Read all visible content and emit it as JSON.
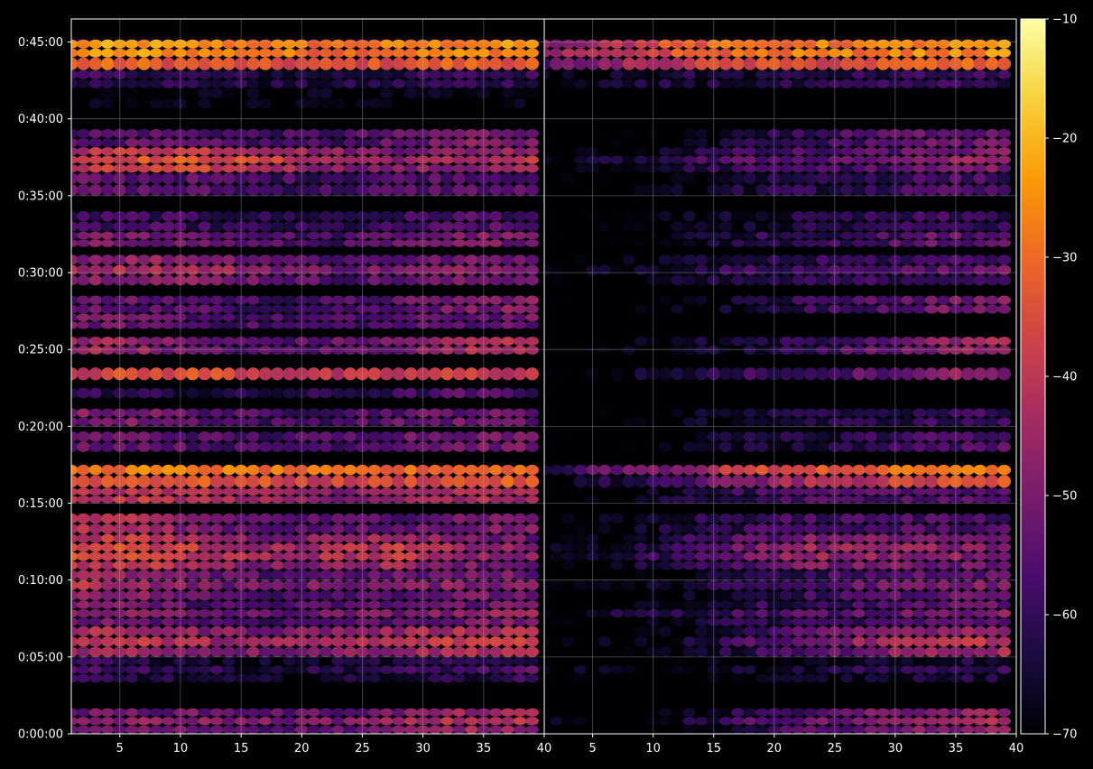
{
  "chart_data": {
    "type": "heatmap",
    "title": "",
    "xlabel": "",
    "ylabel": "",
    "background": "#000000",
    "colormap": "inferno",
    "colormap_stops": [
      "#000004",
      "#1b0c41",
      "#4a0c6b",
      "#781c6d",
      "#a52c60",
      "#cf4446",
      "#ed6925",
      "#fb9b06",
      "#f7d13d",
      "#fcffa4"
    ],
    "grid": true,
    "panels": [
      {
        "name": "",
        "xlim": [
          1,
          40
        ],
        "x_ticks": [
          "5",
          "10",
          "15",
          "20",
          "25",
          "30",
          "35",
          "40"
        ],
        "x_tick_values": [
          5,
          10,
          15,
          20,
          25,
          30,
          35,
          40
        ],
        "ylim": [
          0,
          2790
        ],
        "y_ticks": [
          "0:00:00",
          "0:05:00",
          "0:10:00",
          "0:15:00",
          "0:20:00",
          "0:25:00",
          "0:30:00",
          "0:35:00",
          "0:40:00",
          "0:45:00"
        ],
        "y_tick_values": [
          0,
          300,
          600,
          900,
          1200,
          1500,
          1800,
          2100,
          2400,
          2700
        ],
        "bands": [
          {
            "t": [
              2640,
              2710
            ],
            "levels": [
              -22,
              -20,
              -22,
              -24,
              -26,
              -24,
              -22,
              -22
            ]
          },
          {
            "t": [
              2590,
              2640
            ],
            "levels": [
              -28,
              -28,
              -30,
              -32,
              -32,
              -30,
              -28,
              -28
            ]
          },
          {
            "t": [
              2520,
              2590
            ],
            "levels": [
              -56,
              -56,
              -58,
              -60,
              -60,
              -58,
              -56,
              -56
            ]
          },
          {
            "t": [
              2440,
              2520
            ],
            "levels": [
              -66,
              -66,
              -66,
              -66,
              -66,
              -66,
              -66,
              -66
            ]
          },
          {
            "t": [
              2290,
              2360
            ],
            "levels": [
              -52,
              -50,
              -52,
              -54,
              -54,
              -50,
              -46,
              -46
            ]
          },
          {
            "t": [
              2190,
              2290
            ],
            "levels": [
              -38,
              -34,
              -34,
              -38,
              -44,
              -46,
              -44,
              -40
            ]
          },
          {
            "t": [
              2100,
              2190
            ],
            "levels": [
              -50,
              -50,
              -52,
              -54,
              -54,
              -52,
              -50,
              -52
            ]
          },
          {
            "t": [
              1960,
              2040
            ],
            "levels": [
              -56,
              -54,
              -56,
              -58,
              -58,
              -56,
              -52,
              -54
            ]
          },
          {
            "t": [
              1900,
              1960
            ],
            "levels": [
              -48,
              -46,
              -48,
              -52,
              -54,
              -50,
              -46,
              -46
            ]
          },
          {
            "t": [
              1750,
              1870
            ],
            "levels": [
              -44,
              -42,
              -44,
              -48,
              -52,
              -50,
              -48,
              -46
            ]
          },
          {
            "t": [
              1640,
              1710
            ],
            "levels": [
              -50,
              -50,
              -52,
              -54,
              -54,
              -50,
              -46,
              -44
            ]
          },
          {
            "t": [
              1580,
              1640
            ],
            "levels": [
              -48,
              -48,
              -52,
              -54,
              -54,
              -52,
              -50,
              -48
            ]
          },
          {
            "t": [
              1480,
              1550
            ],
            "levels": [
              -40,
              -42,
              -50,
              -52,
              -50,
              -46,
              -40,
              -36
            ]
          },
          {
            "t": [
              1380,
              1430
            ],
            "levels": [
              -34,
              -32,
              -30,
              -34,
              -38,
              -36,
              -34,
              -36
            ]
          },
          {
            "t": [
              1310,
              1350
            ],
            "levels": [
              -56,
              -58,
              -60,
              -60,
              -58,
              -56,
              -52,
              -54
            ]
          },
          {
            "t": [
              1200,
              1270
            ],
            "levels": [
              -46,
              -46,
              -50,
              -54,
              -52,
              -50,
              -48,
              -50
            ]
          },
          {
            "t": [
              1100,
              1180
            ],
            "levels": [
              -48,
              -48,
              -52,
              -54,
              -52,
              -48,
              -46,
              -48
            ]
          },
          {
            "t": [
              1010,
              1050
            ],
            "levels": [
              -26,
              -24,
              -24,
              -26,
              -28,
              -28,
              -26,
              -26
            ]
          },
          {
            "t": [
              960,
              1010
            ],
            "levels": [
              -30,
              -28,
              -30,
              -32,
              -34,
              -32,
              -30,
              -30
            ]
          },
          {
            "t": [
              900,
              960
            ],
            "levels": [
              -38,
              -36,
              -38,
              -42,
              -44,
              -42,
              -40,
              -40
            ]
          },
          {
            "t": [
              780,
              860
            ],
            "levels": [
              -38,
              -40,
              -46,
              -50,
              -52,
              -50,
              -46,
              -46
            ]
          },
          {
            "t": [
              640,
              780
            ],
            "levels": [
              -36,
              -36,
              -40,
              -46,
              -42,
              -40,
              -46,
              -48
            ]
          },
          {
            "t": [
              520,
              640
            ],
            "levels": [
              -40,
              -44,
              -50,
              -52,
              -50,
              -50,
              -48,
              -48
            ]
          },
          {
            "t": [
              420,
              520
            ],
            "levels": [
              -46,
              -48,
              -52,
              -54,
              -52,
              -50,
              -48,
              -46
            ]
          },
          {
            "t": [
              300,
              420
            ],
            "levels": [
              -40,
              -40,
              -44,
              -46,
              -44,
              -42,
              -38,
              -36
            ]
          },
          {
            "t": [
              200,
              300
            ],
            "levels": [
              -56,
              -58,
              -62,
              -64,
              -62,
              -60,
              -58,
              -56
            ]
          },
          {
            "t": [
              0,
              100
            ],
            "levels": [
              -48,
              -48,
              -48,
              -50,
              -50,
              -46,
              -42,
              -42
            ]
          }
        ]
      },
      {
        "name": "",
        "xlim": [
          1,
          40
        ],
        "x_ticks": [
          "5",
          "10",
          "15",
          "20",
          "25",
          "30",
          "35",
          "40"
        ],
        "x_tick_values": [
          5,
          10,
          15,
          20,
          25,
          30,
          35,
          40
        ],
        "ylim": [
          0,
          2790
        ],
        "bands": [
          {
            "t": [
              2640,
              2710
            ],
            "levels": [
              -44,
              -38,
              -30,
              -26,
              -24,
              -24,
              -22,
              -22
            ]
          },
          {
            "t": [
              2590,
              2640
            ],
            "levels": [
              -50,
              -44,
              -36,
              -32,
              -32,
              -30,
              -28,
              -28
            ]
          },
          {
            "t": [
              2520,
              2590
            ],
            "levels": [
              -66,
              -64,
              -60,
              -60,
              -60,
              -58,
              -56,
              -56
            ]
          },
          {
            "t": [
              2290,
              2360
            ],
            "levels": [
              -70,
              -70,
              -68,
              -60,
              -56,
              -52,
              -48,
              -48
            ]
          },
          {
            "t": [
              2190,
              2290
            ],
            "levels": [
              -70,
              -66,
              -60,
              -56,
              -54,
              -52,
              -48,
              -46
            ]
          },
          {
            "t": [
              2100,
              2190
            ],
            "levels": [
              -70,
              -70,
              -66,
              -60,
              -58,
              -56,
              -54,
              -54
            ]
          },
          {
            "t": [
              1960,
              2040
            ],
            "levels": [
              -70,
              -70,
              -66,
              -62,
              -60,
              -58,
              -56,
              -56
            ]
          },
          {
            "t": [
              1900,
              1960
            ],
            "levels": [
              -70,
              -68,
              -64,
              -58,
              -56,
              -54,
              -50,
              -50
            ]
          },
          {
            "t": [
              1750,
              1870
            ],
            "levels": [
              -70,
              -68,
              -64,
              -60,
              -58,
              -56,
              -54,
              -52
            ]
          },
          {
            "t": [
              1640,
              1710
            ],
            "levels": [
              -70,
              -70,
              -66,
              -62,
              -56,
              -52,
              -48,
              -46
            ]
          },
          {
            "t": [
              1480,
              1550
            ],
            "levels": [
              -70,
              -68,
              -64,
              -62,
              -56,
              -50,
              -44,
              -40
            ]
          },
          {
            "t": [
              1380,
              1430
            ],
            "levels": [
              -70,
              -66,
              -60,
              -56,
              -54,
              -50,
              -44,
              -44
            ]
          },
          {
            "t": [
              1200,
              1270
            ],
            "levels": [
              -70,
              -70,
              -66,
              -62,
              -60,
              -58,
              -56,
              -56
            ]
          },
          {
            "t": [
              1100,
              1180
            ],
            "levels": [
              -70,
              -70,
              -66,
              -62,
              -60,
              -56,
              -52,
              -52
            ]
          },
          {
            "t": [
              1010,
              1050
            ],
            "levels": [
              -56,
              -50,
              -44,
              -34,
              -30,
              -28,
              -26,
              -24
            ]
          },
          {
            "t": [
              960,
              1010
            ],
            "levels": [
              -66,
              -60,
              -54,
              -46,
              -40,
              -36,
              -32,
              -30
            ]
          },
          {
            "t": [
              900,
              960
            ],
            "levels": [
              -70,
              -66,
              -62,
              -56,
              -54,
              -52,
              -50,
              -50
            ]
          },
          {
            "t": [
              780,
              860
            ],
            "levels": [
              -70,
              -66,
              -60,
              -56,
              -54,
              -54,
              -52,
              -52
            ]
          },
          {
            "t": [
              640,
              780
            ],
            "levels": [
              -70,
              -66,
              -58,
              -52,
              -46,
              -46,
              -48,
              -50
            ]
          },
          {
            "t": [
              520,
              640
            ],
            "levels": [
              -70,
              -70,
              -66,
              -60,
              -56,
              -52,
              -50,
              -50
            ]
          },
          {
            "t": [
              420,
              520
            ],
            "levels": [
              -70,
              -66,
              -62,
              -58,
              -56,
              -54,
              -52,
              -50
            ]
          },
          {
            "t": [
              300,
              420
            ],
            "levels": [
              -70,
              -70,
              -66,
              -58,
              -52,
              -46,
              -42,
              -40
            ]
          },
          {
            "t": [
              200,
              300
            ],
            "levels": [
              -70,
              -70,
              -70,
              -66,
              -64,
              -62,
              -60,
              -60
            ]
          },
          {
            "t": [
              0,
              100
            ],
            "levels": [
              -70,
              -70,
              -66,
              -58,
              -52,
              -48,
              -44,
              -44
            ]
          }
        ]
      }
    ],
    "colorbar": {
      "range": [
        -70,
        -10
      ],
      "ticks": [
        "−10",
        "−20",
        "−30",
        "−40",
        "−50",
        "−60",
        "−70"
      ],
      "tick_values": [
        -10,
        -20,
        -30,
        -40,
        -50,
        -60,
        -70
      ]
    }
  }
}
